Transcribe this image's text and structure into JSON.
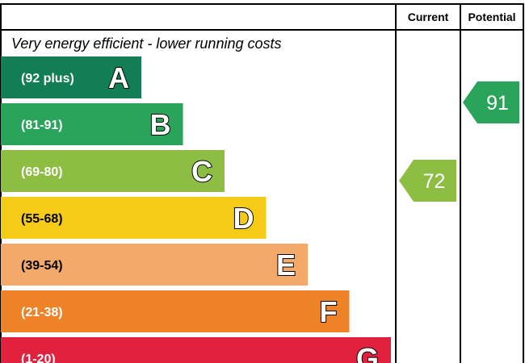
{
  "chart_data": {
    "type": "bar",
    "header": {
      "current_label": "Current",
      "potential_label": "Potential"
    },
    "top_note": "Very energy efficient - lower running costs",
    "bands": [
      {
        "letter": "A",
        "range": "(92 plus)",
        "color": "#117e56"
      },
      {
        "letter": "B",
        "range": "(81-91)",
        "color": "#2aa45b"
      },
      {
        "letter": "C",
        "range": "(69-80)",
        "color": "#8dbd43"
      },
      {
        "letter": "D",
        "range": "(55-68)",
        "color": "#f5cb17"
      },
      {
        "letter": "E",
        "range": "(39-54)",
        "color": "#f2a96a"
      },
      {
        "letter": "F",
        "range": "(21-38)",
        "color": "#ee8227"
      },
      {
        "letter": "G",
        "range": "(1-20)",
        "color": "#e2213e"
      }
    ],
    "current": {
      "value": "72",
      "band": "C",
      "color": "#8dbd43"
    },
    "potential": {
      "value": "91",
      "band": "B",
      "color": "#2aa45b"
    }
  }
}
